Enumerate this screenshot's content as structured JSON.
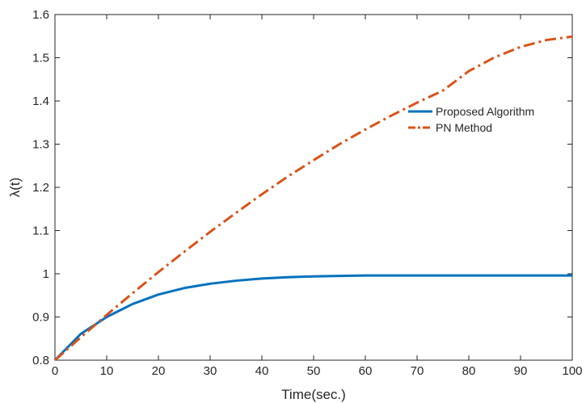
{
  "chart_data": {
    "type": "line",
    "title": "",
    "xlabel": "Time(sec.)",
    "ylabel": "λ(t)",
    "xlim": [
      0,
      100
    ],
    "ylim": [
      0.8,
      1.6
    ],
    "xticks": [
      "0",
      "10",
      "20",
      "30",
      "40",
      "50",
      "60",
      "70",
      "80",
      "90",
      "100"
    ],
    "yticks": [
      "0.8",
      "0.9",
      "1",
      "1.1",
      "1.2",
      "1.3",
      "1.4",
      "1.5",
      "1.6"
    ],
    "grid": false,
    "legend_position": "upper-right",
    "x": [
      0,
      5,
      10,
      15,
      20,
      25,
      30,
      35,
      40,
      45,
      50,
      55,
      60,
      65,
      70,
      75,
      80,
      85,
      90,
      95,
      100
    ],
    "series": [
      {
        "name": "Proposed Algorithm",
        "color": "#0072BD",
        "style": "solid",
        "values": [
          0.8,
          0.861,
          0.9,
          0.93,
          0.952,
          0.967,
          0.977,
          0.984,
          0.989,
          0.992,
          0.994,
          0.995,
          0.996,
          0.996,
          0.996,
          0.996,
          0.996,
          0.996,
          0.996,
          0.996,
          0.996
        ]
      },
      {
        "name": "PN Method",
        "color": "#D95319",
        "style": "dashdot",
        "values": [
          0.8,
          0.853,
          0.905,
          0.955,
          1.004,
          1.051,
          1.097,
          1.141,
          1.184,
          1.225,
          1.263,
          1.3,
          1.334,
          1.366,
          1.396,
          1.424,
          1.469,
          1.501,
          1.525,
          1.541,
          1.549
        ]
      }
    ]
  }
}
